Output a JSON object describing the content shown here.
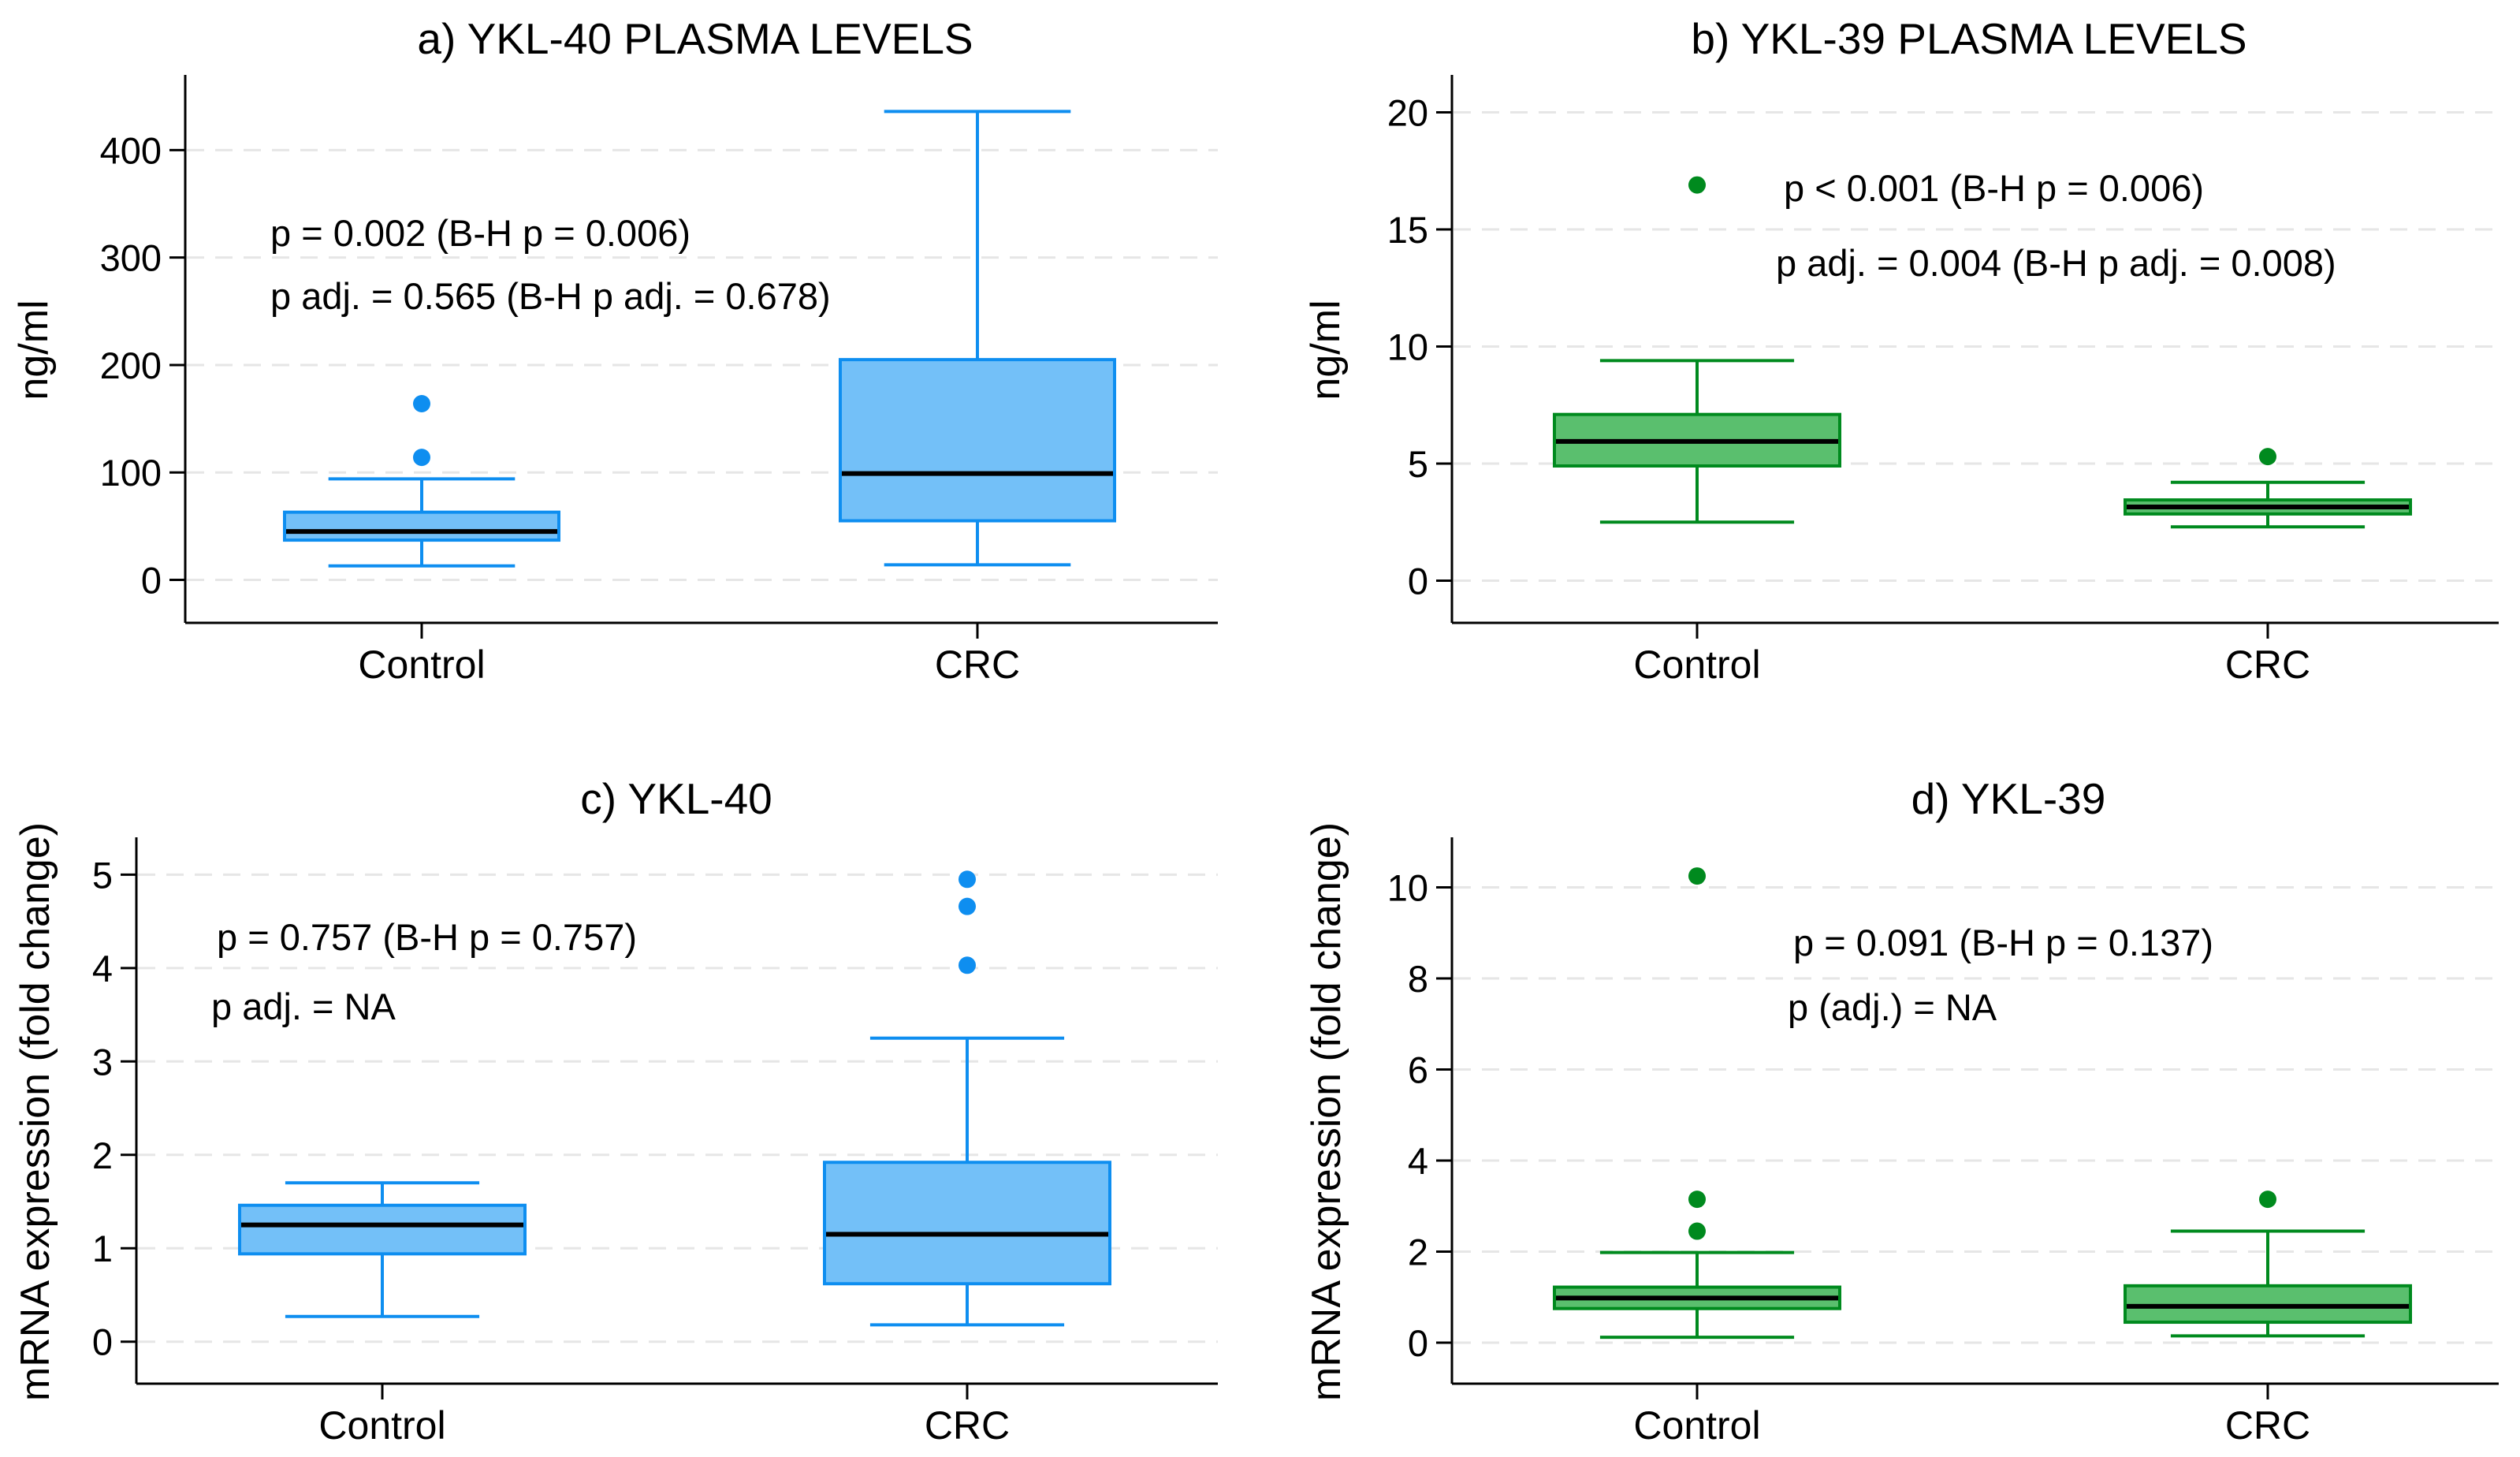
{
  "figure": {
    "layout": "2x2 grid of box plots"
  },
  "chart_data": [
    {
      "id": "a",
      "type": "boxplot",
      "title": "a) YKL-40 PLASMA LEVELS",
      "ylabel": "ng/ml",
      "xlabel": "",
      "ylim": [
        -40,
        470
      ],
      "yticks": [
        0,
        100,
        200,
        300,
        400
      ],
      "categories": [
        "Control",
        "CRC"
      ],
      "colors": {
        "fill": "#73c0f8",
        "stroke": "#0e8ef0"
      },
      "boxes": [
        {
          "category": "Control",
          "whisker_low": 13,
          "q1": 37,
          "median": 45,
          "q3": 63,
          "whisker_high": 94,
          "outliers": [
            114,
            164
          ]
        },
        {
          "category": "CRC",
          "whisker_low": 14,
          "q1": 55,
          "median": 99,
          "q3": 205,
          "whisker_high": 436,
          "outliers": []
        }
      ],
      "annotations": [
        "p = 0.002 (B-H p = 0.006)",
        "p adj. = 0.565 (B-H p adj. = 0.678)"
      ]
    },
    {
      "id": "b",
      "type": "boxplot",
      "title": "b) YKL-39 PLASMA LEVELS",
      "ylabel": "ng/ml",
      "xlabel": "",
      "ylim": [
        -1.8,
        21.6
      ],
      "yticks": [
        0,
        5,
        10,
        15,
        20
      ],
      "categories": [
        "Control",
        "CRC"
      ],
      "colors": {
        "fill": "#5abf6e",
        "stroke": "#008a1e"
      },
      "boxes": [
        {
          "category": "Control",
          "whisker_low": 2.5,
          "q1": 4.9,
          "median": 5.95,
          "q3": 7.1,
          "whisker_high": 9.4,
          "outliers": [
            16.9
          ]
        },
        {
          "category": "CRC",
          "whisker_low": 2.3,
          "q1": 2.85,
          "median": 3.15,
          "q3": 3.45,
          "whisker_high": 4.2,
          "outliers": [
            5.3
          ]
        }
      ],
      "annotations": [
        "p < 0.001 (B-H p = 0.006)",
        "p adj. = 0.004 (B-H p adj. = 0.008)"
      ]
    },
    {
      "id": "c",
      "type": "boxplot",
      "title": "c) YKL-40",
      "ylabel": "mRNA expression (fold change)",
      "xlabel": "",
      "ylim": [
        -0.45,
        5.4
      ],
      "yticks": [
        0,
        1,
        2,
        3,
        4,
        5
      ],
      "categories": [
        "Control",
        "CRC"
      ],
      "colors": {
        "fill": "#73c0f8",
        "stroke": "#0e8ef0"
      },
      "boxes": [
        {
          "category": "Control",
          "whisker_low": 0.27,
          "q1": 0.94,
          "median": 1.25,
          "q3": 1.46,
          "whisker_high": 1.7,
          "outliers": []
        },
        {
          "category": "CRC",
          "whisker_low": 0.18,
          "q1": 0.62,
          "median": 1.15,
          "q3": 1.92,
          "whisker_high": 3.25,
          "outliers": [
            4.03,
            4.66,
            4.95
          ]
        }
      ],
      "annotations": [
        "p = 0.757 (B-H p = 0.757)",
        "p adj. = NA"
      ]
    },
    {
      "id": "d",
      "type": "boxplot",
      "title": "d) YKL-39",
      "ylabel": "mRNA expression (fold change)",
      "xlabel": "",
      "ylim": [
        -0.9,
        11.1
      ],
      "yticks": [
        0,
        2,
        4,
        6,
        8,
        10
      ],
      "categories": [
        "Control",
        "CRC"
      ],
      "colors": {
        "fill": "#5abf6e",
        "stroke": "#008a1e"
      },
      "boxes": [
        {
          "category": "Control",
          "whisker_low": 0.12,
          "q1": 0.75,
          "median": 0.98,
          "q3": 1.22,
          "whisker_high": 1.98,
          "outliers": [
            2.45,
            3.15,
            10.25
          ]
        },
        {
          "category": "CRC",
          "whisker_low": 0.15,
          "q1": 0.45,
          "median": 0.8,
          "q3": 1.25,
          "whisker_high": 2.45,
          "outliers": [
            3.15
          ]
        }
      ],
      "annotations": [
        "p = 0.091 (B-H p = 0.137)",
        "p (adj.) = NA"
      ]
    }
  ]
}
